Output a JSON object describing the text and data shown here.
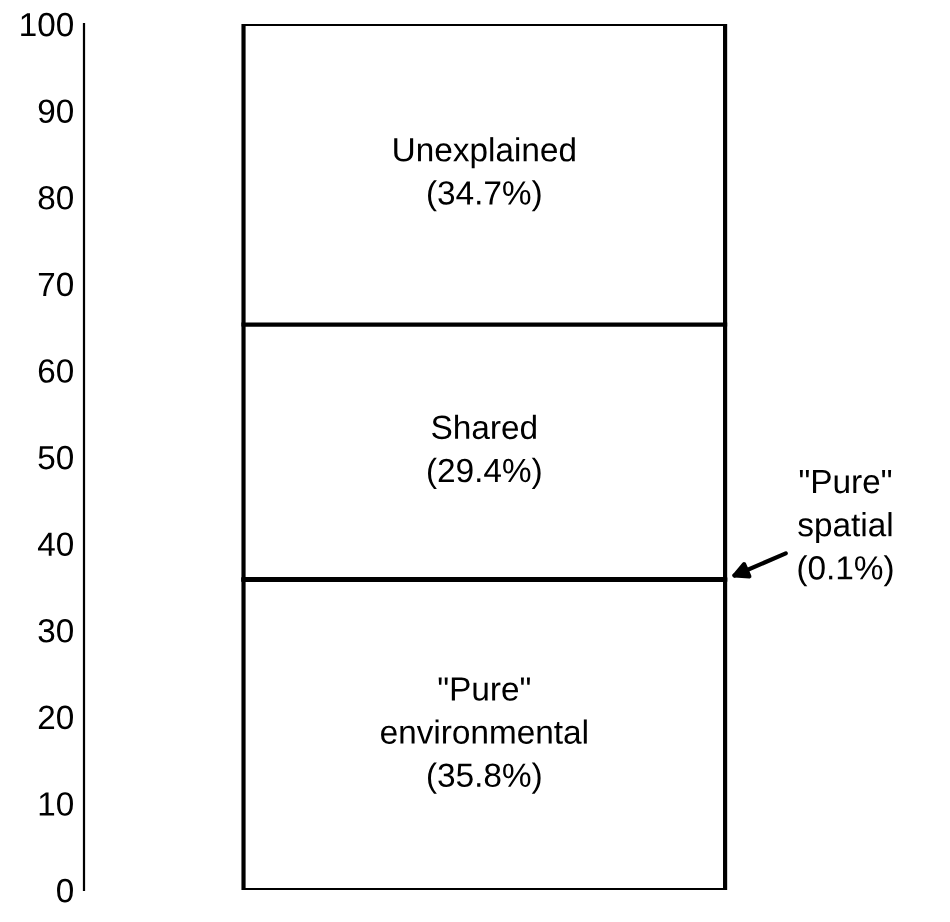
{
  "chart_data": {
    "type": "bar",
    "stacked": true,
    "categories": [
      null
    ],
    "series": [
      {
        "name": "\"Pure\"\nenvironmental",
        "color": "#ffffff",
        "values": [
          35.8
        ],
        "value_labels": [
          "(35.8%)"
        ]
      },
      {
        "name": "\"Pure\"\nspatial",
        "color": "#000000",
        "values": [
          0.1
        ],
        "value_labels": [
          "(0.1%)"
        ]
      },
      {
        "name": "Shared",
        "color": "#ffffff",
        "values": [
          29.4
        ],
        "value_labels": [
          "(29.4%)"
        ]
      },
      {
        "name": "Unexplained",
        "color": "#ffffff",
        "values": [
          34.7
        ],
        "value_labels": [
          "(34.7%)"
        ]
      }
    ],
    "ylim": [
      0,
      100
    ],
    "yticks": [
      0,
      10,
      20,
      30,
      40,
      50,
      60,
      70,
      80,
      90,
      100
    ],
    "grid": false,
    "legend": false
  }
}
